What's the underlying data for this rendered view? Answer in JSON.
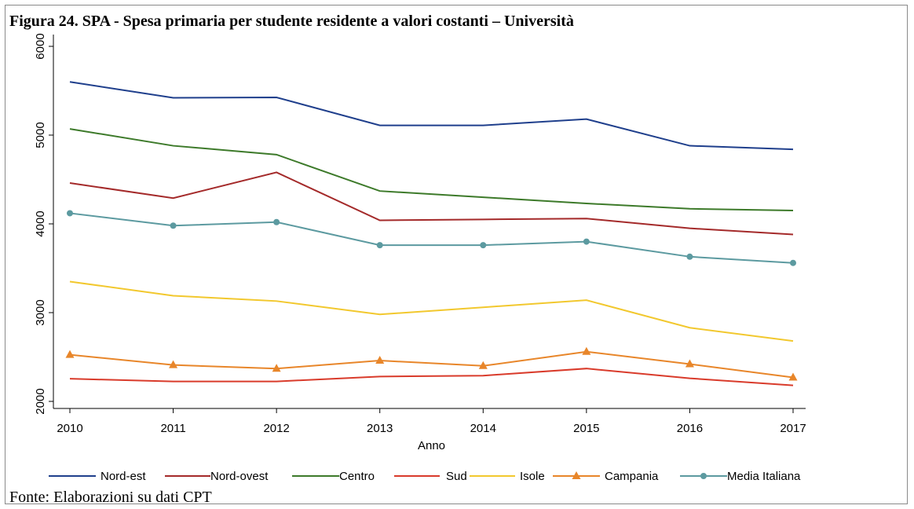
{
  "figure": {
    "title": "Figura 24. SPA - Spesa primaria per studente residente a valori costanti – Università",
    "source": "Fonte: Elaborazioni su dati CPT"
  },
  "chart_data": {
    "type": "line",
    "title": "Figura 24. SPA - Spesa primaria per studente residente a valori costanti – Università",
    "xlabel": "Anno",
    "ylabel": "",
    "x": [
      2010,
      2011,
      2012,
      2013,
      2014,
      2015,
      2016,
      2017
    ],
    "xticks": [
      "2010",
      "2011",
      "2012",
      "2013",
      "2014",
      "2015",
      "2016",
      "2017"
    ],
    "yticks": [
      "2000",
      "3000",
      "4000",
      "5000",
      "6000"
    ],
    "ylim": [
      1950,
      6100
    ],
    "xlim": [
      2010,
      2017
    ],
    "grid": false,
    "legend_position": "bottom",
    "series": [
      {
        "name": "Nord-est",
        "color": "#1f3f8c",
        "marker": "none",
        "values": [
          5600,
          5420,
          5425,
          5110,
          5110,
          5180,
          4880,
          4840
        ]
      },
      {
        "name": "Nord-ovest",
        "color": "#a42a2a",
        "marker": "none",
        "values": [
          4460,
          4290,
          4580,
          4040,
          4050,
          4060,
          3950,
          3880
        ]
      },
      {
        "name": "Centro",
        "color": "#3d7a2a",
        "marker": "none",
        "values": [
          5070,
          4880,
          4780,
          4370,
          4300,
          4230,
          4170,
          4150
        ]
      },
      {
        "name": "Sud",
        "color": "#d93b2b",
        "marker": "none",
        "values": [
          2255,
          2225,
          2225,
          2280,
          2290,
          2370,
          2260,
          2180
        ]
      },
      {
        "name": "Isole",
        "color": "#f2c82e",
        "marker": "none",
        "values": [
          3350,
          3190,
          3130,
          2980,
          3060,
          3140,
          2830,
          2680
        ]
      },
      {
        "name": "Campania",
        "color": "#e8862a",
        "marker": "triangle",
        "values": [
          2525,
          2410,
          2370,
          2460,
          2400,
          2560,
          2420,
          2270
        ]
      },
      {
        "name": "Media Italiana",
        "color": "#5c9aa0",
        "marker": "circle",
        "values": [
          4120,
          3980,
          4020,
          3760,
          3760,
          3800,
          3630,
          3560
        ]
      }
    ]
  }
}
